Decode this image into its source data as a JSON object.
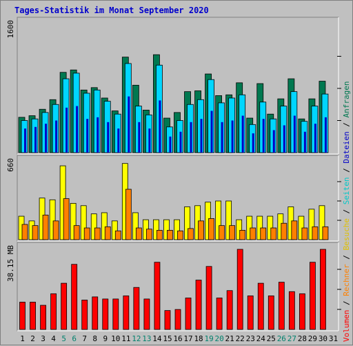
{
  "chart_data": {
    "type": "bar",
    "title": "Tages-Statistik im Monat September 2020",
    "categories": [
      "1",
      "2",
      "3",
      "4",
      "5",
      "6",
      "7",
      "8",
      "9",
      "10",
      "11",
      "12",
      "13",
      "14",
      "15",
      "16",
      "17",
      "18",
      "19",
      "20",
      "21",
      "22",
      "23",
      "24",
      "25",
      "26",
      "27",
      "28",
      "29",
      "30",
      "31"
    ],
    "weekend_days": [
      "5",
      "6",
      "12",
      "13",
      "19",
      "20",
      "26",
      "27"
    ],
    "panels": [
      {
        "ymax_label": "1600",
        "ymax": 1600,
        "series": [
          {
            "name": "Anfragen",
            "color": "#007850",
            "values": [
              440,
              460,
              540,
              660,
              1000,
              1030,
              780,
              810,
              680,
              520,
              1190,
              840,
              530,
              1220,
              430,
              500,
              760,
              770,
              980,
              710,
              720,
              870,
              430,
              860,
              480,
              670,
              920,
              420,
              670,
              890,
              0
            ]
          },
          {
            "name": "Dateien",
            "color": "#00d6ff",
            "values": [
              400,
              420,
              500,
              600,
              920,
              990,
              740,
              780,
              640,
              480,
              1110,
              580,
              470,
              1090,
              320,
              400,
              600,
              660,
              910,
              620,
              680,
              720,
              350,
              630,
              420,
              580,
              760,
              390,
              580,
              730,
              0
            ]
          },
          {
            "name": "Seiten",
            "color": "#0000c8",
            "values": [
              300,
              320,
              360,
              400,
              560,
              580,
              420,
              440,
              380,
              300,
              700,
              380,
              300,
              650,
              200,
              260,
              380,
              420,
              520,
              380,
              400,
              460,
              240,
              420,
              280,
              340,
              460,
              260,
              360,
              440,
              0
            ]
          }
        ]
      },
      {
        "ymax_label": "660",
        "ymax": 660,
        "series": [
          {
            "name": "Besuche",
            "color": "#ffff00",
            "values": [
              200,
              160,
              355,
              340,
              630,
              310,
              290,
              220,
              230,
              160,
              650,
              230,
              170,
              170,
              170,
              170,
              280,
              290,
              320,
              330,
              330,
              170,
              200,
              200,
              200,
              220,
              280,
              200,
              260,
              290,
              0
            ]
          },
          {
            "name": "Rechner",
            "color": "#ff8000",
            "values": [
              130,
              120,
              210,
              160,
              350,
              120,
              100,
              100,
              110,
              75,
              430,
              100,
              90,
              80,
              80,
              75,
              95,
              160,
              180,
              120,
              120,
              80,
              100,
              100,
              100,
              140,
              160,
              100,
              110,
              110,
              0
            ]
          }
        ]
      },
      {
        "ymax_label": "38.15 MB",
        "ymax": 38.15,
        "series": [
          {
            "name": "Volumen",
            "color": "#ff0000",
            "values": [
              13,
              13,
              11.5,
              17,
              22,
              31,
              14,
              15.5,
              14.5,
              14.5,
              16,
              20,
              14.5,
              32,
              9,
              9.5,
              15,
              23.5,
              30,
              15,
              18.5,
              38.15,
              16,
              22,
              16,
              22.5,
              18,
              17,
              32,
              38.15,
              0
            ]
          }
        ]
      }
    ],
    "right_legend": {
      "separator": " / ",
      "items": [
        {
          "label": "Volumen",
          "color": "#ff0000"
        },
        {
          "label": "Rechner",
          "color": "#ff8000"
        },
        {
          "label": "Besuche",
          "color": "#e0c000"
        },
        {
          "label": "Seiten",
          "color": "#00c8c8"
        },
        {
          "label": "Dateien",
          "color": "#0000c8"
        },
        {
          "label": "Anfragen",
          "color": "#007850"
        }
      ]
    },
    "colors": {
      "background": "#c0c0c0",
      "title": "#0000cc",
      "weekend_label": "#00806c",
      "weekday_label": "#000000"
    }
  }
}
